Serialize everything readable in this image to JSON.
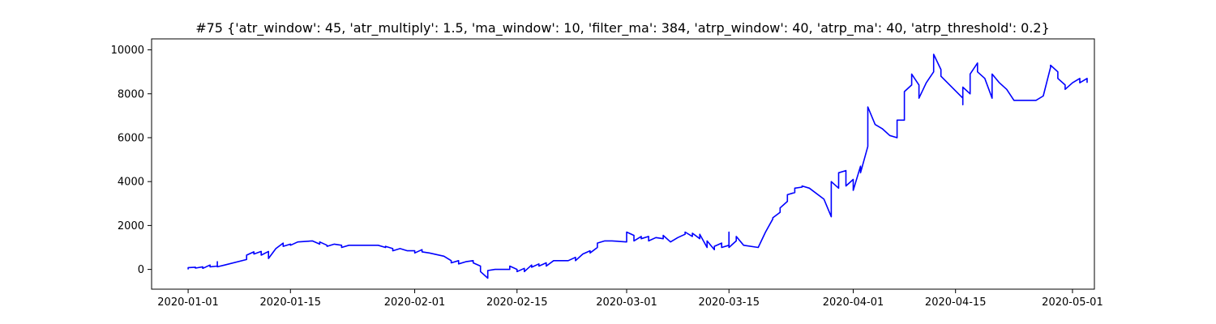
{
  "chart_data": {
    "type": "line",
    "title": "#75 {'atr_window': 45, 'atr_multiply': 1.5, 'ma_window': 10, 'filter_ma': 384, 'atrp_window': 40, 'atrp_ma': 40, 'atrp_threshold': 0.2}",
    "xlabel": "",
    "ylabel": "",
    "grid": false,
    "legend": "none",
    "line_color": "#0000ff",
    "xlim": [
      "2019-12-27",
      "2020-05-04"
    ],
    "ylim": [
      -900,
      10500
    ],
    "x_ticks": [
      "2020-01-01",
      "2020-01-15",
      "2020-02-01",
      "2020-02-15",
      "2020-03-01",
      "2020-03-15",
      "2020-04-01",
      "2020-04-15",
      "2020-05-01"
    ],
    "y_ticks": [
      "0",
      "2000",
      "4000",
      "6000",
      "8000",
      "10000"
    ],
    "y_tick_values": [
      0,
      2000,
      4000,
      6000,
      8000,
      10000
    ],
    "series": [
      {
        "points": [
          [
            "2020-01-01",
            0
          ],
          [
            "2020-01-01",
            80
          ],
          [
            "2020-01-02",
            100
          ],
          [
            "2020-01-02",
            60
          ],
          [
            "2020-01-03",
            120
          ],
          [
            "2020-01-03",
            50
          ],
          [
            "2020-01-04",
            200
          ],
          [
            "2020-01-04",
            120
          ],
          [
            "2020-01-05",
            150
          ],
          [
            "2020-01-05",
            350
          ],
          [
            "2020-01-05",
            120
          ],
          [
            "2020-01-06",
            200
          ],
          [
            "2020-01-09",
            450
          ],
          [
            "2020-01-09",
            650
          ],
          [
            "2020-01-10",
            800
          ],
          [
            "2020-01-10",
            700
          ],
          [
            "2020-01-11",
            820
          ],
          [
            "2020-01-11",
            650
          ],
          [
            "2020-01-12",
            820
          ],
          [
            "2020-01-12",
            500
          ],
          [
            "2020-01-13",
            950
          ],
          [
            "2020-01-14",
            1200
          ],
          [
            "2020-01-14",
            1050
          ],
          [
            "2020-01-15",
            1150
          ],
          [
            "2020-01-15",
            1100
          ],
          [
            "2020-01-16",
            1250
          ],
          [
            "2020-01-18",
            1300
          ],
          [
            "2020-01-19",
            1150
          ],
          [
            "2020-01-19",
            1250
          ],
          [
            "2020-01-20",
            1100
          ],
          [
            "2020-01-20",
            1050
          ],
          [
            "2020-01-21",
            1150
          ],
          [
            "2020-01-22",
            1100
          ],
          [
            "2020-01-22",
            1000
          ],
          [
            "2020-01-23",
            1100
          ],
          [
            "2020-01-27",
            1100
          ],
          [
            "2020-01-28",
            1000
          ],
          [
            "2020-01-28",
            1050
          ],
          [
            "2020-01-29",
            950
          ],
          [
            "2020-01-29",
            850
          ],
          [
            "2020-01-30",
            950
          ],
          [
            "2020-01-31",
            850
          ],
          [
            "2020-02-01",
            850
          ],
          [
            "2020-02-01",
            750
          ],
          [
            "2020-02-02",
            900
          ],
          [
            "2020-02-02",
            800
          ],
          [
            "2020-02-03",
            750
          ],
          [
            "2020-02-05",
            600
          ],
          [
            "2020-02-06",
            400
          ],
          [
            "2020-02-06",
            300
          ],
          [
            "2020-02-07",
            400
          ],
          [
            "2020-02-07",
            250
          ],
          [
            "2020-02-08",
            350
          ],
          [
            "2020-02-09",
            400
          ],
          [
            "2020-02-09",
            300
          ],
          [
            "2020-02-10",
            150
          ],
          [
            "2020-02-10",
            -100
          ],
          [
            "2020-02-11",
            -400
          ],
          [
            "2020-02-11",
            -50
          ],
          [
            "2020-02-12",
            0
          ],
          [
            "2020-02-14",
            0
          ],
          [
            "2020-02-14",
            150
          ],
          [
            "2020-02-15",
            0
          ],
          [
            "2020-02-15",
            -100
          ],
          [
            "2020-02-16",
            50
          ],
          [
            "2020-02-16",
            -100
          ],
          [
            "2020-02-17",
            200
          ],
          [
            "2020-02-17",
            100
          ],
          [
            "2020-02-18",
            250
          ],
          [
            "2020-02-18",
            150
          ],
          [
            "2020-02-19",
            300
          ],
          [
            "2020-02-19",
            150
          ],
          [
            "2020-02-20",
            400
          ],
          [
            "2020-02-22",
            400
          ],
          [
            "2020-02-23",
            550
          ],
          [
            "2020-02-23",
            400
          ],
          [
            "2020-02-24",
            700
          ],
          [
            "2020-02-25",
            850
          ],
          [
            "2020-02-25",
            750
          ],
          [
            "2020-02-26",
            1000
          ],
          [
            "2020-02-26",
            1200
          ],
          [
            "2020-02-27",
            1300
          ],
          [
            "2020-02-28",
            1300
          ],
          [
            "2020-03-01",
            1250
          ],
          [
            "2020-03-01",
            1700
          ],
          [
            "2020-03-02",
            1550
          ],
          [
            "2020-03-02",
            1300
          ],
          [
            "2020-03-03",
            1500
          ],
          [
            "2020-03-03",
            1400
          ],
          [
            "2020-03-04",
            1500
          ],
          [
            "2020-03-04",
            1300
          ],
          [
            "2020-03-05",
            1450
          ],
          [
            "2020-03-06",
            1400
          ],
          [
            "2020-03-06",
            1550
          ],
          [
            "2020-03-07",
            1250
          ],
          [
            "2020-03-08",
            1450
          ],
          [
            "2020-03-09",
            1600
          ],
          [
            "2020-03-09",
            1700
          ],
          [
            "2020-03-10",
            1500
          ],
          [
            "2020-03-10",
            1650
          ],
          [
            "2020-03-11",
            1400
          ],
          [
            "2020-03-11",
            1600
          ],
          [
            "2020-03-12",
            1000
          ],
          [
            "2020-03-12",
            1300
          ],
          [
            "2020-03-13",
            900
          ],
          [
            "2020-03-13",
            1050
          ],
          [
            "2020-03-14",
            1200
          ],
          [
            "2020-03-14",
            1000
          ],
          [
            "2020-03-15",
            1100
          ],
          [
            "2020-03-15",
            1700
          ],
          [
            "2020-03-15",
            1000
          ],
          [
            "2020-03-16",
            1300
          ],
          [
            "2020-03-16",
            1500
          ],
          [
            "2020-03-17",
            1100
          ],
          [
            "2020-03-19",
            1000
          ],
          [
            "2020-03-20",
            1700
          ],
          [
            "2020-03-21",
            2300
          ],
          [
            "2020-03-21",
            2350
          ],
          [
            "2020-03-22",
            2600
          ],
          [
            "2020-03-22",
            2800
          ],
          [
            "2020-03-23",
            3100
          ],
          [
            "2020-03-23",
            3400
          ],
          [
            "2020-03-24",
            3500
          ],
          [
            "2020-03-24",
            3700
          ],
          [
            "2020-03-25",
            3750
          ],
          [
            "2020-03-25",
            3800
          ],
          [
            "2020-03-26",
            3700
          ],
          [
            "2020-03-28",
            3200
          ],
          [
            "2020-03-29",
            2400
          ],
          [
            "2020-03-29",
            4000
          ],
          [
            "2020-03-30",
            3700
          ],
          [
            "2020-03-30",
            4400
          ],
          [
            "2020-03-31",
            4500
          ],
          [
            "2020-03-31",
            3800
          ],
          [
            "2020-04-01",
            4100
          ],
          [
            "2020-04-01",
            3600
          ],
          [
            "2020-04-02",
            4700
          ],
          [
            "2020-04-02",
            4400
          ],
          [
            "2020-04-03",
            5600
          ],
          [
            "2020-04-03",
            6600
          ],
          [
            "2020-04-03",
            7400
          ],
          [
            "2020-04-04",
            6600
          ],
          [
            "2020-04-05",
            6400
          ],
          [
            "2020-04-06",
            6100
          ],
          [
            "2020-04-07",
            6000
          ],
          [
            "2020-04-07",
            6800
          ],
          [
            "2020-04-08",
            6800
          ],
          [
            "2020-04-08",
            7800
          ],
          [
            "2020-04-08",
            8100
          ],
          [
            "2020-04-09",
            8400
          ],
          [
            "2020-04-09",
            8900
          ],
          [
            "2020-04-10",
            8400
          ],
          [
            "2020-04-10",
            7800
          ],
          [
            "2020-04-11",
            8500
          ],
          [
            "2020-04-12",
            9000
          ],
          [
            "2020-04-12",
            9800
          ],
          [
            "2020-04-13",
            9100
          ],
          [
            "2020-04-13",
            8800
          ],
          [
            "2020-04-16",
            7800
          ],
          [
            "2020-04-16",
            7500
          ],
          [
            "2020-04-16",
            8300
          ],
          [
            "2020-04-17",
            8000
          ],
          [
            "2020-04-17",
            8900
          ],
          [
            "2020-04-18",
            9400
          ],
          [
            "2020-04-18",
            9000
          ],
          [
            "2020-04-19",
            8700
          ],
          [
            "2020-04-20",
            7800
          ],
          [
            "2020-04-20",
            8900
          ],
          [
            "2020-04-21",
            8500
          ],
          [
            "2020-04-22",
            8200
          ],
          [
            "2020-04-23",
            7700
          ],
          [
            "2020-04-26",
            7700
          ],
          [
            "2020-04-27",
            7900
          ],
          [
            "2020-04-28",
            9200
          ],
          [
            "2020-04-28",
            9300
          ],
          [
            "2020-04-29",
            9000
          ],
          [
            "2020-04-29",
            8700
          ],
          [
            "2020-04-30",
            8400
          ],
          [
            "2020-04-30",
            8200
          ],
          [
            "2020-05-01",
            8500
          ],
          [
            "2020-05-02",
            8700
          ],
          [
            "2020-05-02",
            8500
          ],
          [
            "2020-05-03",
            8700
          ],
          [
            "2020-05-03",
            8500
          ]
        ]
      }
    ]
  }
}
